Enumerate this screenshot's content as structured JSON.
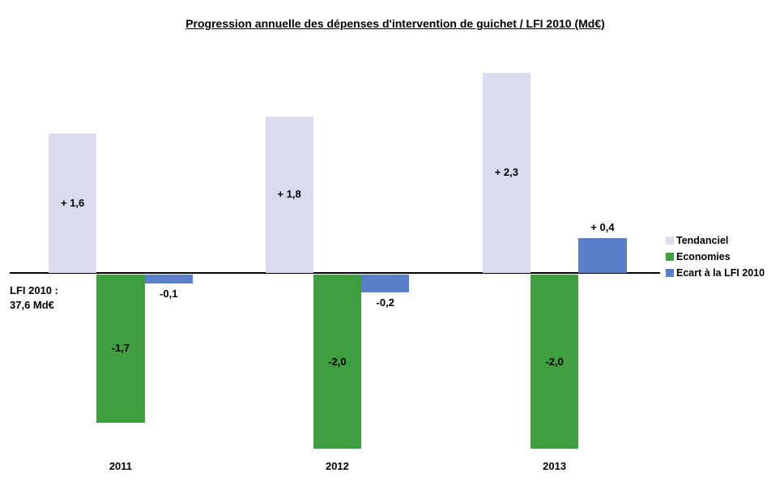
{
  "title": "Progression annuelle des dépenses d'intervention de guichet / LFI 2010 (Md€)",
  "axis_note": {
    "line1": "LFI 2010 :",
    "line2": "37,6 Md€"
  },
  "legend": [
    {
      "label": "Tendanciel",
      "color": "#dbdbf0"
    },
    {
      "label": "Economies",
      "color": "#3f9e3f"
    },
    {
      "label": "Ecart à la LFI 2010",
      "color": "#5b7ec8"
    }
  ],
  "chart_data": {
    "type": "bar",
    "categories": [
      "2011",
      "2012",
      "2013"
    ],
    "series": [
      {
        "name": "Tendanciel",
        "color": "#dbdbf0",
        "values": [
          1.6,
          1.8,
          2.3
        ],
        "labels": [
          "+ 1,6",
          "+ 1,8",
          "+ 2,3"
        ],
        "label_position": "inside-center"
      },
      {
        "name": "Economies",
        "color": "#3f9e3f",
        "values": [
          -1.7,
          -2.0,
          -2.0
        ],
        "labels": [
          "-1,7",
          "-2,0",
          "-2,0"
        ],
        "label_position": "inside-center"
      },
      {
        "name": "Ecart à la LFI 2010",
        "color": "#5b7ec8",
        "values": [
          -0.1,
          -0.2,
          0.4
        ],
        "labels": [
          "-0,1",
          "-0,2",
          "+ 0,4"
        ],
        "label_position": "outside-end"
      }
    ],
    "title": "Progression annuelle des dépenses d'intervention de guichet / LFI 2010 (Md€)",
    "xlabel": "",
    "ylabel": "",
    "ylim": [
      -2.5,
      2.5
    ],
    "grid": false,
    "y_axis_visible": false,
    "baseline_annotation": "LFI 2010 : 37,6 Md€",
    "legend_position": "right"
  }
}
